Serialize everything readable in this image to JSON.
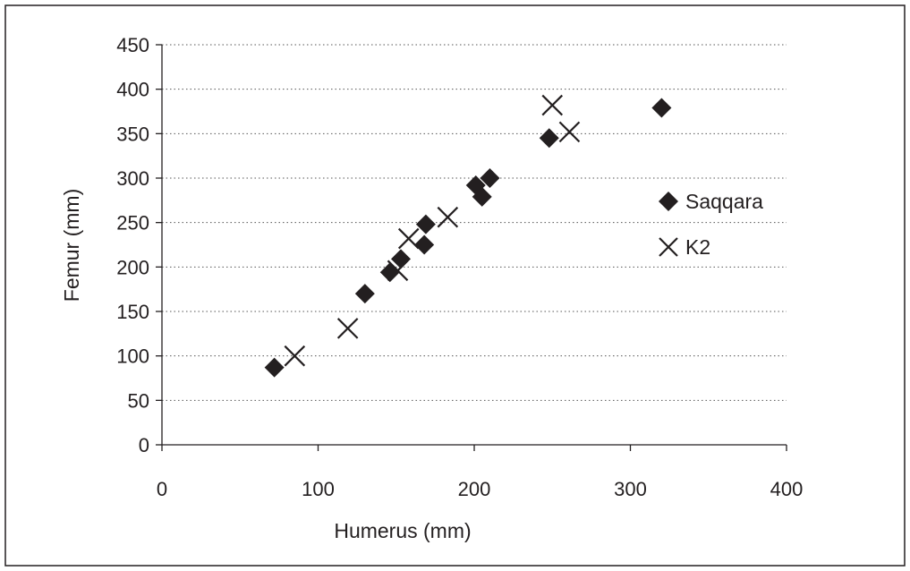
{
  "chart_data": {
    "type": "scatter",
    "xlabel": "Humerus (mm)",
    "ylabel": "Femur (mm)",
    "xlim": [
      0,
      400
    ],
    "ylim": [
      0,
      450
    ],
    "x_ticks": [
      0,
      100,
      200,
      300,
      400
    ],
    "y_ticks": [
      0,
      50,
      100,
      150,
      200,
      250,
      300,
      350,
      400,
      450
    ],
    "grid": "horizontal dotted",
    "legend_position": "right",
    "series": [
      {
        "name": "Saqqara",
        "marker": "diamond",
        "color": "#231f20",
        "points": [
          {
            "x": 72,
            "y": 87
          },
          {
            "x": 130,
            "y": 170
          },
          {
            "x": 146,
            "y": 194
          },
          {
            "x": 153,
            "y": 209
          },
          {
            "x": 168,
            "y": 225
          },
          {
            "x": 169,
            "y": 248
          },
          {
            "x": 201,
            "y": 292
          },
          {
            "x": 205,
            "y": 279
          },
          {
            "x": 210,
            "y": 300
          },
          {
            "x": 248,
            "y": 345
          },
          {
            "x": 320,
            "y": 379
          }
        ]
      },
      {
        "name": "K2",
        "marker": "cross",
        "color": "#231f20",
        "points": [
          {
            "x": 85,
            "y": 100
          },
          {
            "x": 119,
            "y": 131
          },
          {
            "x": 151,
            "y": 196
          },
          {
            "x": 158,
            "y": 232
          },
          {
            "x": 183,
            "y": 256
          },
          {
            "x": 250,
            "y": 382
          },
          {
            "x": 261,
            "y": 352
          }
        ]
      }
    ]
  }
}
